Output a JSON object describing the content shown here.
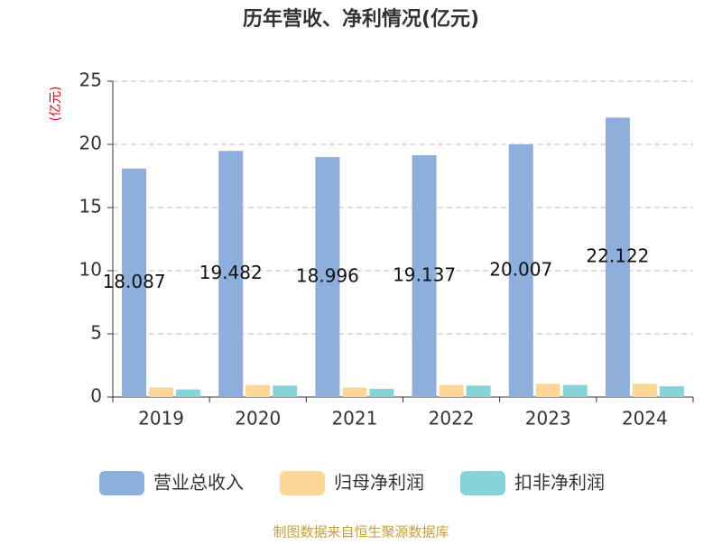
{
  "chart_data": {
    "type": "bar",
    "title": "历年营收、净利情况(亿元)",
    "y_label": "(亿元)",
    "source": "制图数据来自恒生聚源数据库",
    "categories": [
      "2019",
      "2020",
      "2021",
      "2022",
      "2023",
      "2024"
    ],
    "series": [
      {
        "name": "营业总收入",
        "color": "#8eaedb",
        "values": [
          18.087,
          19.482,
          18.996,
          19.137,
          20.007,
          22.122
        ],
        "labels": true
      },
      {
        "name": "归母净利润",
        "color": "#fdd797",
        "values": [
          0.75,
          0.95,
          0.75,
          0.95,
          1.05,
          1.05
        ]
      },
      {
        "name": "扣非净利润",
        "color": "#86d4d8",
        "values": [
          0.6,
          0.9,
          0.65,
          0.9,
          0.95,
          0.85
        ]
      }
    ],
    "ylim": [
      0,
      25
    ],
    "yticks": [
      0,
      5,
      10,
      15,
      20,
      25
    ],
    "grid": true
  }
}
